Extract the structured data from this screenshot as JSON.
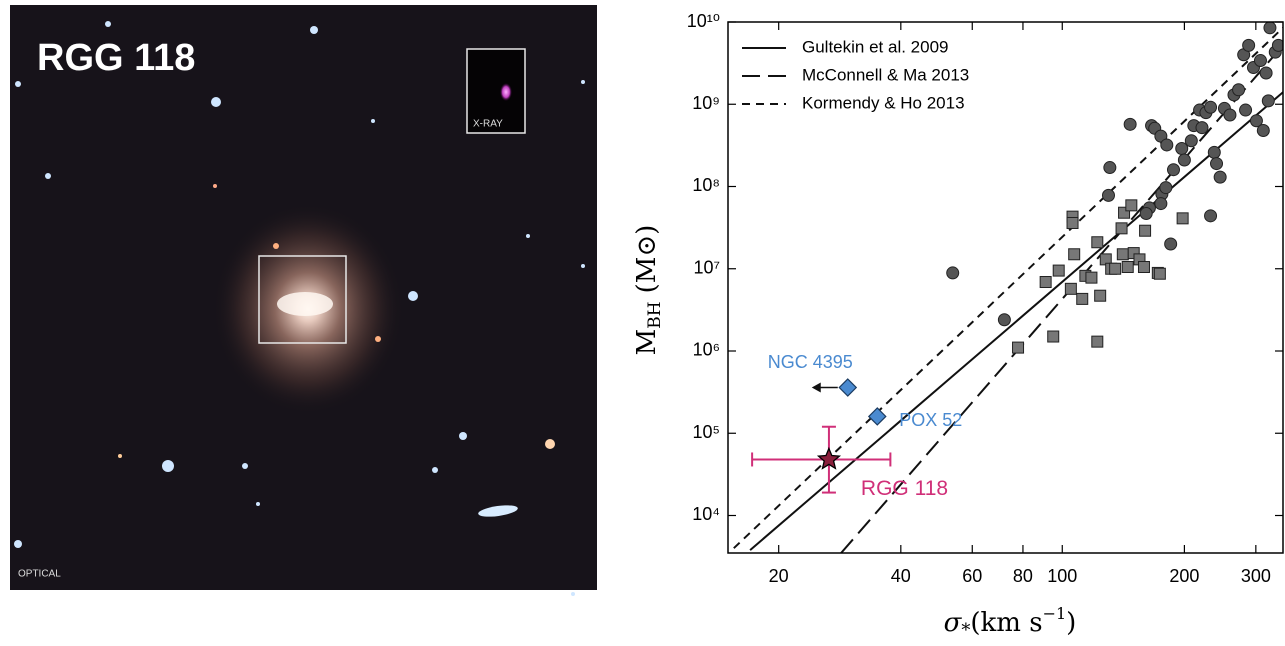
{
  "image_panel": {
    "title": "RGG 118",
    "inset_label": "X-RAY",
    "corner_label": "OPTICAL"
  },
  "chart_data": {
    "type": "scatter",
    "xlabel": {
      "symbol": "σ",
      "sub": "*",
      "unit": "(km s",
      "exp": "−1",
      "close": ")"
    },
    "ylabel": {
      "symbol": "M",
      "sub": "BH",
      "unit": "(M⊙)"
    },
    "log_x": true,
    "log_y": true,
    "xlim": [
      15,
      350
    ],
    "ylim": [
      3500,
      10000000000
    ],
    "xticks": [
      20,
      40,
      60,
      80,
      100,
      200,
      300
    ],
    "yticks": [
      {
        "value": 10000,
        "label": "10⁴"
      },
      {
        "value": 100000,
        "label": "10⁵"
      },
      {
        "value": 1000000,
        "label": "10⁶"
      },
      {
        "value": 10000000,
        "label": "10⁷"
      },
      {
        "value": 100000000,
        "label": "10⁸"
      },
      {
        "value": 1000000000,
        "label": "10⁹"
      },
      {
        "value": 10000000000,
        "label": "10¹⁰"
      }
    ],
    "legend": "upper left",
    "series": [
      {
        "name": "Gultekin et al. 2009",
        "kind": "line",
        "dash": "solid",
        "color": "#111111",
        "x": [
          17,
          350
        ],
        "values": [
          3800,
          1400000000
        ]
      },
      {
        "name": "McConnell & Ma 2013",
        "kind": "line",
        "dash": "long",
        "color": "#111111",
        "x": [
          28.5,
          350
        ],
        "values": [
          3500,
          5200000000
        ]
      },
      {
        "name": "Kormendy & Ho 2013",
        "kind": "line",
        "dash": "short",
        "color": "#111111",
        "x": [
          15.5,
          350
        ],
        "values": [
          4000,
          8500000000
        ]
      },
      {
        "kind": "points",
        "marker": "circle",
        "color": "#555555",
        "x": [
          53.7,
          72,
          131,
          130,
          147,
          166,
          169,
          175,
          181,
          176,
          164,
          161,
          175,
          180,
          188,
          197,
          200,
          208,
          211,
          218,
          221,
          226,
          232,
          237,
          240,
          245,
          251,
          259,
          265,
          272,
          280,
          288,
          296,
          308,
          318,
          325,
          335,
          341,
          283,
          301,
          313,
          322,
          232,
          185
        ],
        "values": [
          8900000,
          2400000,
          170000000,
          78000000,
          570000000,
          550000000,
          510000000,
          410000000,
          320000000,
          81000000,
          55000000,
          47000000,
          62000000,
          97000000,
          160000000,
          290000000,
          210000000,
          360000000,
          550000000,
          850000000,
          520000000,
          790000000,
          920000000,
          260000000,
          190000000,
          130000000,
          890000000,
          740000000,
          1300000000,
          1500000000,
          4000000000,
          5200000000,
          2800000000,
          3400000000,
          2400000000,
          8500000000,
          4300000000,
          5200000000,
          850000000,
          630000000,
          480000000,
          1100000000,
          44000000,
          20000000
        ]
      },
      {
        "kind": "points",
        "marker": "square",
        "color": "#777777",
        "x": [
          77.8,
          91,
          98,
          105,
          107,
          112,
          106,
          106,
          114,
          118,
          122,
          124,
          128,
          132,
          135,
          145,
          141,
          150,
          155,
          159,
          172,
          160,
          142,
          148,
          140,
          95,
          122,
          198,
          174
        ],
        "values": [
          1100000,
          6900000,
          9500000,
          5700000,
          15000000,
          4300000,
          43000000,
          36000000,
          8200000,
          7800000,
          21000000,
          4700000,
          13000000,
          10000000,
          10000000,
          10500000,
          15000000,
          15500000,
          13000000,
          10500000,
          8900000,
          29000000,
          48000000,
          59000000,
          31000000,
          1500000,
          1300000,
          41000000,
          8700000
        ]
      }
    ],
    "highlights": [
      {
        "label": "NGC 4395",
        "marker": "diamond",
        "color": "#4a8ad0",
        "x": 29.6,
        "y": 360000,
        "upper_limit_x": true
      },
      {
        "label": "POX 52",
        "marker": "diamond",
        "color": "#4a8ad0",
        "x": 35,
        "y": 160000
      },
      {
        "label": "RGG 118",
        "marker": "star",
        "color": "#d02f78",
        "fill": "#8a1f3c",
        "x": 26.6,
        "y": 48000,
        "xerr": [
          17.2,
          37.7
        ],
        "yerr": [
          19000,
          120000
        ]
      }
    ]
  }
}
